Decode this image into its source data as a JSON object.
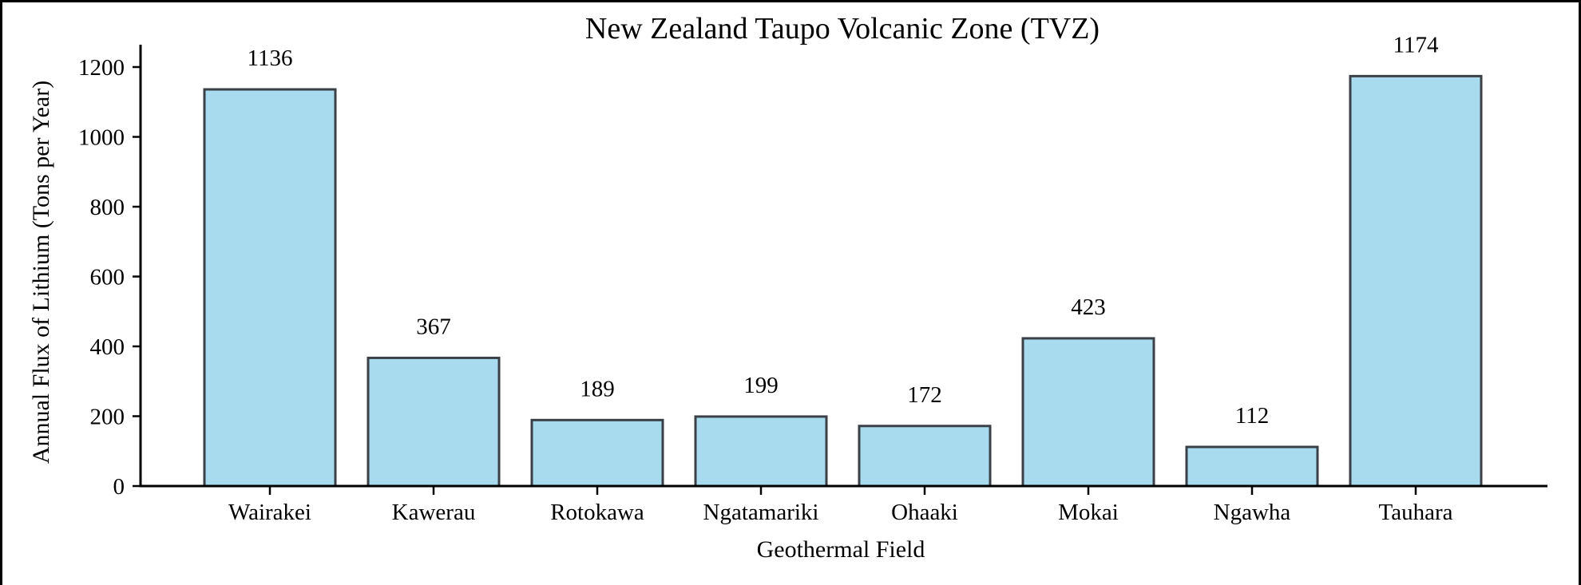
{
  "chart_data": {
    "type": "bar",
    "title": "New Zealand Taupo Volcanic Zone (TVZ)",
    "xlabel": "Geothermal Field",
    "ylabel": "Annual Flux of Lithium (Tons per Year)",
    "categories": [
      "Wairakei",
      "Kawerau",
      "Rotokawa",
      "Ngatamariki",
      "Ohaaki",
      "Mokai",
      "Ngawha",
      "Tauhara"
    ],
    "values": [
      1136,
      367,
      189,
      199,
      172,
      423,
      112,
      1174
    ],
    "data_labels": [
      "1136",
      "367",
      "189",
      "199",
      "172",
      "423",
      "112",
      "1174"
    ],
    "yticks": [
      0,
      200,
      400,
      600,
      800,
      1000,
      1200
    ],
    "ylim": [
      0,
      1230
    ],
    "grid": false,
    "legend": null,
    "bar_color": "#a8dbed",
    "bar_edge_color": "#3a4046"
  }
}
